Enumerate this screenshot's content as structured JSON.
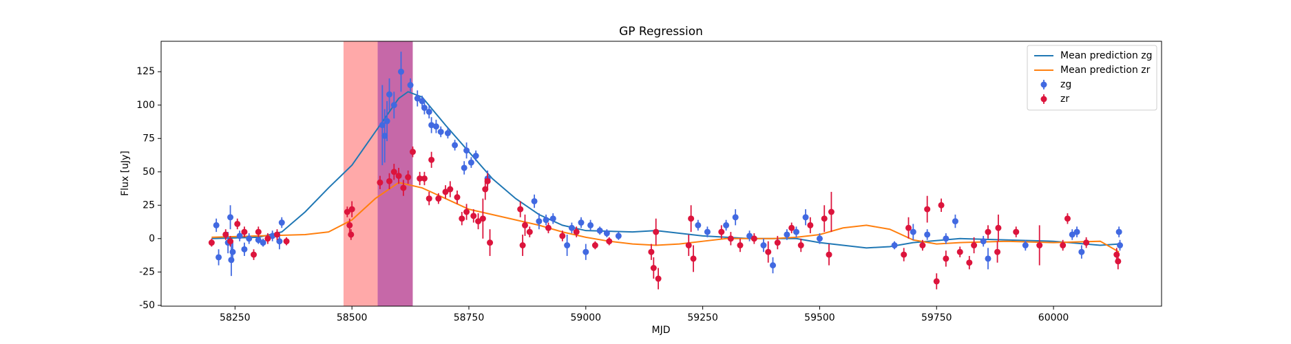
{
  "chart_data": {
    "type": "line",
    "title": "GP Regression",
    "xlabel": "MJD",
    "ylabel": "Flux [uJy]",
    "xlim": [
      58092,
      60231
    ],
    "ylim": [
      -50.6,
      147.8
    ],
    "xticks": [
      58250,
      58500,
      58750,
      59000,
      59250,
      59500,
      59750,
      60000
    ],
    "yticks": [
      -50,
      -25,
      0,
      25,
      50,
      75,
      100,
      125
    ],
    "legend": "upper right",
    "spans": [
      {
        "xlim": [
          58482,
          58555
        ],
        "color": "#ff6f6f",
        "alpha": 0.6
      },
      {
        "xlim": [
          58555,
          58630
        ],
        "color": "#c0589e",
        "alpha": 0.9
      }
    ],
    "series": [
      {
        "name": "Mean prediction zg",
        "type": "line",
        "color": "#1f77b4",
        "x": [
          58200,
          58300,
          58350,
          58400,
          58450,
          58500,
          58550,
          58600,
          58620,
          58650,
          58700,
          58750,
          58800,
          58850,
          58900,
          58950,
          59000,
          59100,
          59150,
          59200,
          59250,
          59350,
          59450,
          59500,
          59600,
          59650,
          59700,
          59800,
          59900,
          60000,
          60100,
          60140
        ],
        "values": [
          0,
          1,
          5,
          20,
          38,
          55,
          80,
          105,
          110,
          106,
          85,
          65,
          45,
          30,
          18,
          10,
          6,
          5,
          6,
          4,
          2,
          0,
          0,
          -3,
          -7,
          -6,
          -3,
          0,
          -1,
          -2,
          -5,
          -4
        ]
      },
      {
        "name": "Mean prediction zr",
        "type": "line",
        "color": "#ff7f0e",
        "x": [
          58200,
          58300,
          58400,
          58450,
          58500,
          58550,
          58600,
          58650,
          58700,
          58750,
          58800,
          58850,
          58900,
          58950,
          59000,
          59050,
          59100,
          59150,
          59200,
          59250,
          59300,
          59400,
          59450,
          59500,
          59550,
          59600,
          59650,
          59700,
          59750,
          59800,
          59900,
          60000,
          60100,
          60140
        ],
        "values": [
          1,
          2,
          3,
          5,
          14,
          30,
          42,
          38,
          30,
          22,
          18,
          14,
          10,
          5,
          1,
          -2,
          -4,
          -5,
          -4,
          -2,
          0,
          0,
          1,
          3,
          8,
          10,
          7,
          -1,
          -4,
          -3,
          -2,
          -3,
          -2,
          -10
        ]
      },
      {
        "name": "zg",
        "type": "errorbar",
        "color": "#4169e1",
        "x": [
          58210,
          58215,
          58235,
          58240,
          58242,
          58245,
          58260,
          58270,
          58280,
          58300,
          58310,
          58330,
          58345,
          58350,
          58565,
          58570,
          58575,
          58580,
          58590,
          58605,
          58625,
          58640,
          58650,
          58655,
          58665,
          58670,
          58680,
          58690,
          58705,
          58720,
          58740,
          58745,
          58755,
          58765,
          58790,
          58890,
          58900,
          58915,
          58930,
          58960,
          58970,
          58990,
          59000,
          59010,
          59030,
          59045,
          59070,
          59240,
          59260,
          59300,
          59320,
          59350,
          59380,
          59400,
          59430,
          59450,
          59470,
          59500,
          59660,
          59700,
          59730,
          59770,
          59790,
          59850,
          59860,
          59940,
          60040,
          60050,
          60060,
          60140,
          60142
        ],
        "values": [
          10,
          -14,
          -3,
          16,
          -16,
          -10,
          2,
          -8,
          0,
          -1,
          -3,
          2,
          -2,
          12,
          85,
          77,
          88,
          108,
          100,
          125,
          115,
          105,
          103,
          98,
          95,
          85,
          84,
          80,
          79,
          70,
          53,
          66,
          57,
          62,
          45,
          28,
          13,
          14,
          15,
          -5,
          8,
          12,
          -10,
          10,
          6,
          4,
          2,
          10,
          5,
          10,
          16,
          2,
          -5,
          -20,
          3,
          5,
          16,
          0,
          -5,
          5,
          3,
          0,
          13,
          -2,
          -15,
          -5,
          3,
          5,
          -10,
          5,
          -5
        ],
        "errors": [
          5,
          6,
          8,
          9,
          12,
          8,
          4,
          5,
          4,
          3,
          3,
          4,
          6,
          4,
          30,
          20,
          15,
          12,
          10,
          15,
          5,
          6,
          4,
          5,
          5,
          6,
          5,
          4,
          4,
          4,
          5,
          6,
          4,
          4,
          6,
          5,
          6,
          4,
          4,
          8,
          4,
          4,
          6,
          4,
          3,
          3,
          3,
          4,
          4,
          4,
          6,
          4,
          5,
          6,
          4,
          4,
          6,
          4,
          3,
          6,
          4,
          4,
          5,
          4,
          8,
          4,
          4,
          4,
          5,
          4,
          4
        ]
      },
      {
        "name": "zr",
        "type": "errorbar",
        "color": "#dc143c",
        "x": [
          58200,
          58230,
          58240,
          58255,
          58270,
          58290,
          58300,
          58320,
          58340,
          58360,
          58490,
          58495,
          58498,
          58500,
          58560,
          58580,
          58590,
          58600,
          58610,
          58620,
          58630,
          58645,
          58655,
          58665,
          58670,
          58685,
          58700,
          58710,
          58725,
          58735,
          58745,
          58760,
          58770,
          58785,
          58790,
          58795,
          58780,
          58860,
          58865,
          58870,
          58880,
          58920,
          58950,
          58980,
          59020,
          59050,
          59140,
          59145,
          59150,
          59155,
          59220,
          59225,
          59230,
          59290,
          59310,
          59330,
          59360,
          59390,
          59410,
          59440,
          59460,
          59480,
          59510,
          59520,
          59525,
          59680,
          59690,
          59720,
          59730,
          59750,
          59760,
          59770,
          59800,
          59820,
          59830,
          59860,
          59880,
          59882,
          59920,
          59970,
          60020,
          60030,
          60070,
          60135,
          60138
        ],
        "values": [
          -3,
          3,
          -2,
          11,
          5,
          -12,
          5,
          0,
          3,
          -2,
          20,
          10,
          3,
          22,
          42,
          43,
          50,
          47,
          38,
          46,
          65,
          45,
          45,
          30,
          59,
          30,
          35,
          37,
          31,
          15,
          20,
          17,
          13,
          37,
          43,
          -3,
          15,
          22,
          -5,
          10,
          5,
          8,
          2,
          5,
          -5,
          -2,
          -10,
          -22,
          5,
          -30,
          -5,
          15,
          -15,
          5,
          0,
          -5,
          0,
          -10,
          -3,
          8,
          -5,
          10,
          15,
          -12,
          20,
          -12,
          8,
          -5,
          22,
          -32,
          25,
          -15,
          -10,
          -18,
          -5,
          5,
          -10,
          8,
          5,
          -5,
          -5,
          15,
          -3,
          -12,
          -17
        ],
        "errors": [
          3,
          4,
          4,
          4,
          4,
          4,
          4,
          4,
          4,
          3,
          4,
          5,
          4,
          6,
          5,
          6,
          6,
          6,
          6,
          5,
          4,
          5,
          5,
          5,
          6,
          4,
          5,
          6,
          5,
          5,
          6,
          5,
          6,
          8,
          6,
          10,
          15,
          6,
          8,
          8,
          4,
          4,
          4,
          4,
          3,
          3,
          6,
          8,
          10,
          8,
          8,
          10,
          10,
          5,
          5,
          5,
          4,
          8,
          5,
          4,
          5,
          6,
          10,
          8,
          15,
          5,
          8,
          4,
          10,
          6,
          5,
          6,
          4,
          5,
          6,
          5,
          8,
          10,
          4,
          15,
          4,
          4,
          4,
          5,
          6
        ]
      }
    ]
  }
}
